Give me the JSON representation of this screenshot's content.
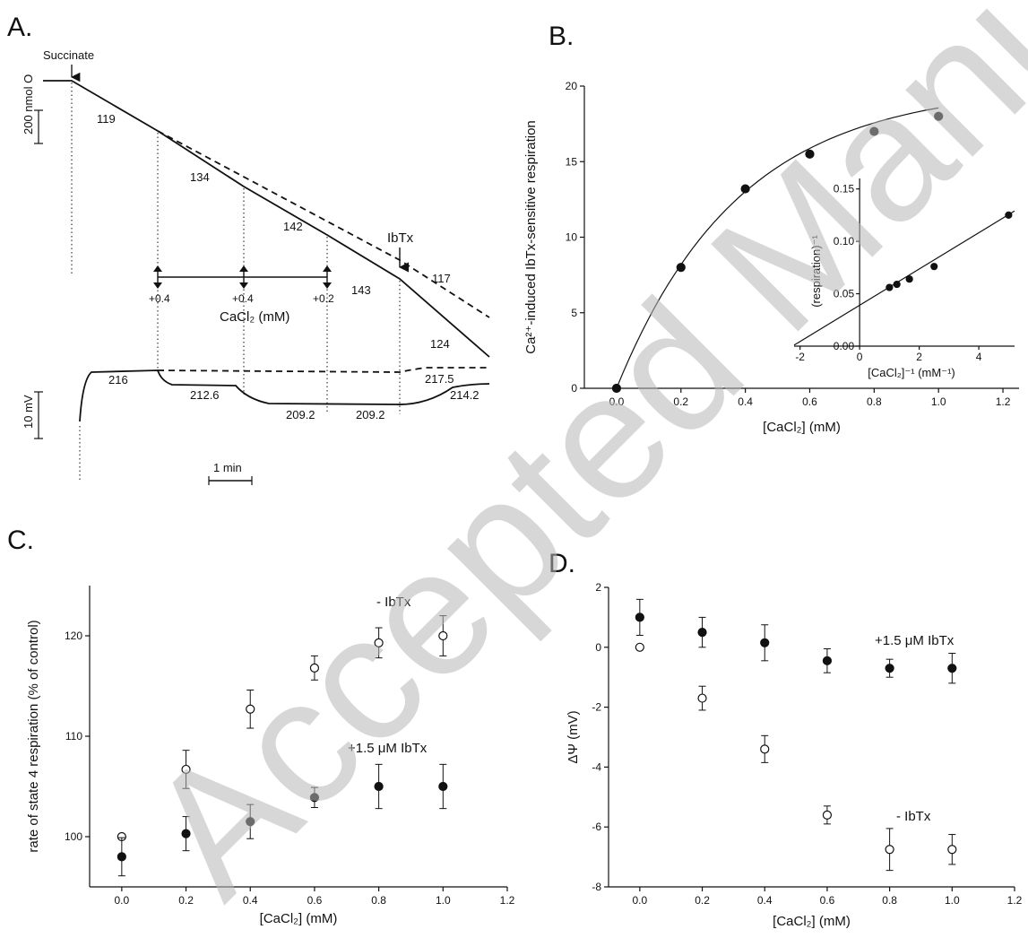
{
  "watermark": "Accepted Manuscript",
  "panels": {
    "A": {
      "letter": "A.",
      "succinate": "Succinate",
      "o2_scale": "200 nmol O",
      "mv_scale": "10 mV",
      "time_scale": "1 min",
      "ibtx": "IbTx",
      "cacl2_label": "CaCl₂ (mM)",
      "additions": [
        "+0.4",
        "+0.4",
        "+0.2"
      ],
      "rates": [
        "119",
        "134",
        "142",
        "143",
        "124",
        "117"
      ],
      "potentials": [
        "216",
        "212.6",
        "209.2",
        "209.2",
        "214.2",
        "217.5"
      ]
    },
    "B": {
      "letter": "B."
    },
    "C": {
      "letter": "C."
    },
    "D": {
      "letter": "D."
    }
  },
  "chart_data": [
    {
      "panel": "B",
      "type": "scatter",
      "xlabel": "[CaCl₂] (mM)",
      "ylabel": "Ca²⁺-induced IbTx-sensitive respiration",
      "xlim": [
        -0.1,
        1.25
      ],
      "ylim": [
        0,
        20
      ],
      "xticks": [
        "0.0",
        "0.2",
        "0.4",
        "0.6",
        "0.8",
        "1.0",
        "1.2"
      ],
      "yticks": [
        "0",
        "5",
        "10",
        "15",
        "20"
      ],
      "series": [
        {
          "marker": "filled",
          "x": [
            0.0,
            0.2,
            0.4,
            0.6,
            0.8,
            1.0
          ],
          "y": [
            0,
            8.0,
            13.2,
            15.5,
            17.0,
            18.0
          ]
        }
      ],
      "inset": {
        "type": "scatter",
        "xlabel": "[CaCl₂]⁻¹ (mM⁻¹)",
        "ylabel": "(respiration)⁻¹",
        "xlim": [
          -2.2,
          5.2
        ],
        "ylim": [
          0,
          0.16
        ],
        "xticks": [
          "-2",
          "0",
          "2",
          "4"
        ],
        "yticks": [
          "0.00",
          "0.05",
          "0.10",
          "0.15"
        ],
        "series": [
          {
            "marker": "filled",
            "x": [
              1.0,
              1.25,
              1.67,
              2.5,
              5.0
            ],
            "y": [
              0.056,
              0.059,
              0.064,
              0.076,
              0.125
            ]
          }
        ]
      }
    },
    {
      "panel": "C",
      "type": "scatter",
      "xlabel": "[CaCl₂] (mM)",
      "ylabel": "rate of state 4 respiration (% of control)",
      "xlim": [
        -0.1,
        1.2
      ],
      "ylim": [
        95,
        125
      ],
      "xticks": [
        "0.0",
        "0.2",
        "0.4",
        "0.6",
        "0.8",
        "1.0",
        "1.2"
      ],
      "yticks": [
        "100",
        "110",
        "120"
      ],
      "annotations": [
        "- IbTx",
        "+1.5 μM IbTx"
      ],
      "series": [
        {
          "marker": "open",
          "x": [
            0.0,
            0.2,
            0.4,
            0.6,
            0.8,
            1.0
          ],
          "y": [
            100,
            106.7,
            112.7,
            116.8,
            119.3,
            120.0
          ],
          "err": [
            0,
            1.9,
            1.9,
            1.2,
            1.5,
            2.0
          ]
        },
        {
          "marker": "filled",
          "x": [
            0.0,
            0.2,
            0.4,
            0.6,
            0.8,
            1.0
          ],
          "y": [
            98.0,
            100.3,
            101.5,
            103.9,
            105.0,
            105.0
          ],
          "err": [
            1.9,
            1.7,
            1.7,
            1.0,
            2.2,
            2.2
          ]
        }
      ]
    },
    {
      "panel": "D",
      "type": "scatter",
      "xlabel": "[CaCl₂] (mM)",
      "ylabel": "ΔΨ (mV)",
      "xlim": [
        -0.1,
        1.2
      ],
      "ylim": [
        -8,
        2
      ],
      "xticks": [
        "0.0",
        "0.2",
        "0.4",
        "0.6",
        "0.8",
        "1.0",
        "1.2"
      ],
      "yticks": [
        "2",
        "0",
        "-2",
        "-4",
        "-6",
        "-8"
      ],
      "annotations": [
        "+1.5 μM IbTx",
        "- IbTx"
      ],
      "series": [
        {
          "marker": "filled",
          "x": [
            0.0,
            0.2,
            0.4,
            0.6,
            0.8,
            1.0
          ],
          "y": [
            1.0,
            0.5,
            0.15,
            -0.45,
            -0.7,
            -0.7
          ],
          "err": [
            0.6,
            0.5,
            0.6,
            0.4,
            0.3,
            0.5
          ]
        },
        {
          "marker": "open",
          "x": [
            0.0,
            0.2,
            0.4,
            0.6,
            0.8,
            1.0
          ],
          "y": [
            0.0,
            -1.7,
            -3.4,
            -5.6,
            -6.75,
            -6.75
          ],
          "err": [
            0,
            0.4,
            0.45,
            0.3,
            0.7,
            0.5
          ]
        }
      ]
    }
  ]
}
